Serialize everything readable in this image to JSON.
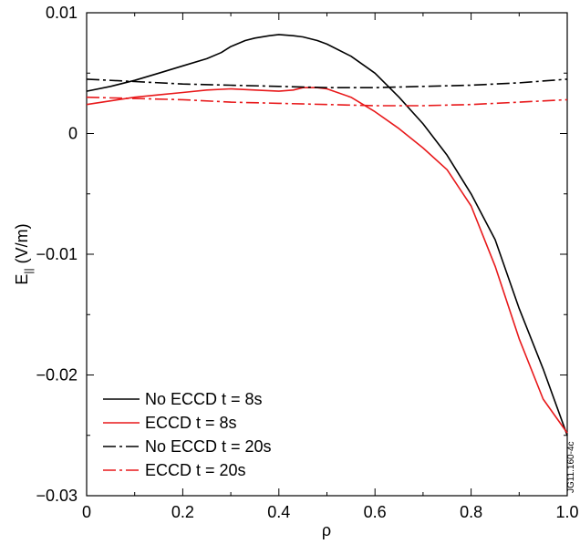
{
  "chart_data": {
    "type": "line",
    "title": "",
    "xlabel": "ρ",
    "ylabel": {
      "main": "E",
      "sub": "||",
      "unit": " (V/m)"
    },
    "xlim": [
      0,
      1.0
    ],
    "ylim": [
      -0.03,
      0.01
    ],
    "xticks": [
      0,
      0.2,
      0.4,
      0.6,
      0.8,
      1.0
    ],
    "xtick_labels": [
      "0",
      "0.2",
      "0.4",
      "0.6",
      "0.8",
      "1.0"
    ],
    "yticks": [
      0.01,
      0,
      -0.01,
      -0.02,
      -0.03
    ],
    "ytick_labels": [
      "0.01",
      "0",
      "−0.01",
      "−0.02",
      "−0.03"
    ],
    "grid": false,
    "legend_position": "bottom-left",
    "tag": "JG11.160-4c",
    "series": [
      {
        "name": "No ECCD t = 8s",
        "color": "#000000",
        "dash": "solid",
        "x": [
          0,
          0.05,
          0.1,
          0.15,
          0.2,
          0.25,
          0.28,
          0.3,
          0.33,
          0.35,
          0.38,
          0.4,
          0.43,
          0.45,
          0.48,
          0.5,
          0.55,
          0.6,
          0.65,
          0.7,
          0.75,
          0.8,
          0.85,
          0.9,
          0.95,
          1.0
        ],
        "y": [
          0.0035,
          0.0039,
          0.0044,
          0.005,
          0.0056,
          0.0062,
          0.0067,
          0.0072,
          0.0077,
          0.0079,
          0.0081,
          0.0082,
          0.0081,
          0.008,
          0.0077,
          0.0074,
          0.0064,
          0.005,
          0.003,
          0.0008,
          -0.0018,
          -0.005,
          -0.0088,
          -0.0145,
          -0.0195,
          -0.025
        ]
      },
      {
        "name": "ECCD t = 8s",
        "color": "#e8191b",
        "dash": "solid",
        "x": [
          0,
          0.05,
          0.1,
          0.15,
          0.2,
          0.25,
          0.3,
          0.35,
          0.4,
          0.43,
          0.45,
          0.48,
          0.5,
          0.55,
          0.6,
          0.65,
          0.7,
          0.75,
          0.8,
          0.85,
          0.9,
          0.95,
          1.0
        ],
        "y": [
          0.0024,
          0.0027,
          0.003,
          0.0032,
          0.0034,
          0.0036,
          0.0037,
          0.0036,
          0.0035,
          0.0036,
          0.0038,
          0.0038,
          0.0037,
          0.003,
          0.0018,
          0.0004,
          -0.0012,
          -0.003,
          -0.006,
          -0.011,
          -0.017,
          -0.022,
          -0.0248
        ]
      },
      {
        "name": "No ECCD t = 20s",
        "color": "#000000",
        "dash": "dashdot",
        "x": [
          0,
          0.1,
          0.2,
          0.3,
          0.4,
          0.5,
          0.6,
          0.7,
          0.8,
          0.9,
          1.0
        ],
        "y": [
          0.0045,
          0.0043,
          0.0041,
          0.004,
          0.0039,
          0.0038,
          0.0038,
          0.0039,
          0.004,
          0.0042,
          0.0045
        ]
      },
      {
        "name": "ECCD t = 20s",
        "color": "#e8191b",
        "dash": "dashdot",
        "x": [
          0,
          0.1,
          0.2,
          0.3,
          0.4,
          0.5,
          0.6,
          0.7,
          0.8,
          0.9,
          1.0
        ],
        "y": [
          0.003,
          0.0029,
          0.0028,
          0.0026,
          0.0025,
          0.0024,
          0.0023,
          0.0023,
          0.0024,
          0.0026,
          0.0028
        ]
      }
    ]
  }
}
